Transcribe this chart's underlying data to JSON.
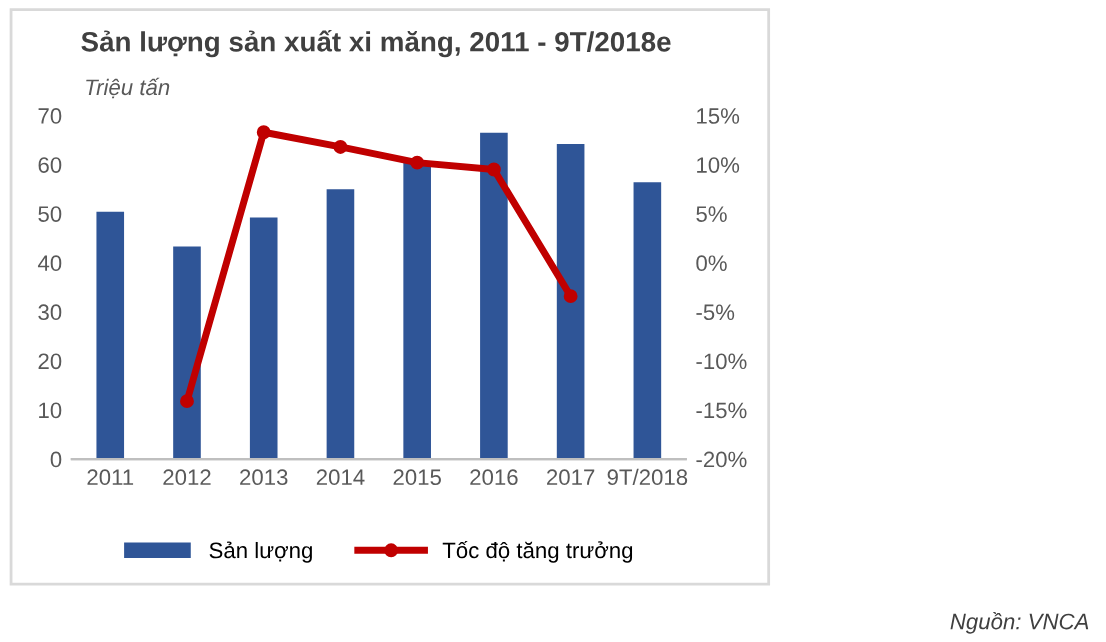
{
  "chart_data": {
    "type": "bar",
    "title": "Sản lượng sản xuất xi măng, 2011 - 9T/2018e",
    "ylabel": "Triệu tấn",
    "categories": [
      "2011",
      "2012",
      "2013",
      "2014",
      "2015",
      "2016",
      "2017",
      "9T/2018"
    ],
    "series": [
      {
        "name": "Sản lượng",
        "color": "#2f5597",
        "values": [
          50.4,
          43.3,
          49.2,
          55.0,
          60.5,
          66.5,
          64.2,
          56.4
        ]
      },
      {
        "name": "Tốc độ tăng trưởng",
        "type": "line",
        "axis": "y2",
        "color": "#c00000",
        "marker": "circle",
        "values": [
          null,
          -14.1,
          13.3,
          11.8,
          10.2,
          9.5,
          -3.4,
          null
        ]
      }
    ],
    "ylim": [
      0,
      70
    ],
    "yticks": [
      0,
      10,
      20,
      30,
      40,
      50,
      60,
      70
    ],
    "y2lim": [
      -20,
      15
    ],
    "y2ticks": [
      {
        "value": -20,
        "label": "-20%"
      },
      {
        "value": -15,
        "label": "-15%"
      },
      {
        "value": -10,
        "label": "-10%"
      },
      {
        "value": -5,
        "label": "-5%"
      },
      {
        "value": 0,
        "label": "0%"
      },
      {
        "value": 5,
        "label": "5%"
      },
      {
        "value": 10,
        "label": "10%"
      },
      {
        "value": 15,
        "label": "15%"
      }
    ],
    "grid": false,
    "legend": "bottom",
    "annotations": [
      "Nguồn: VNCA"
    ]
  }
}
